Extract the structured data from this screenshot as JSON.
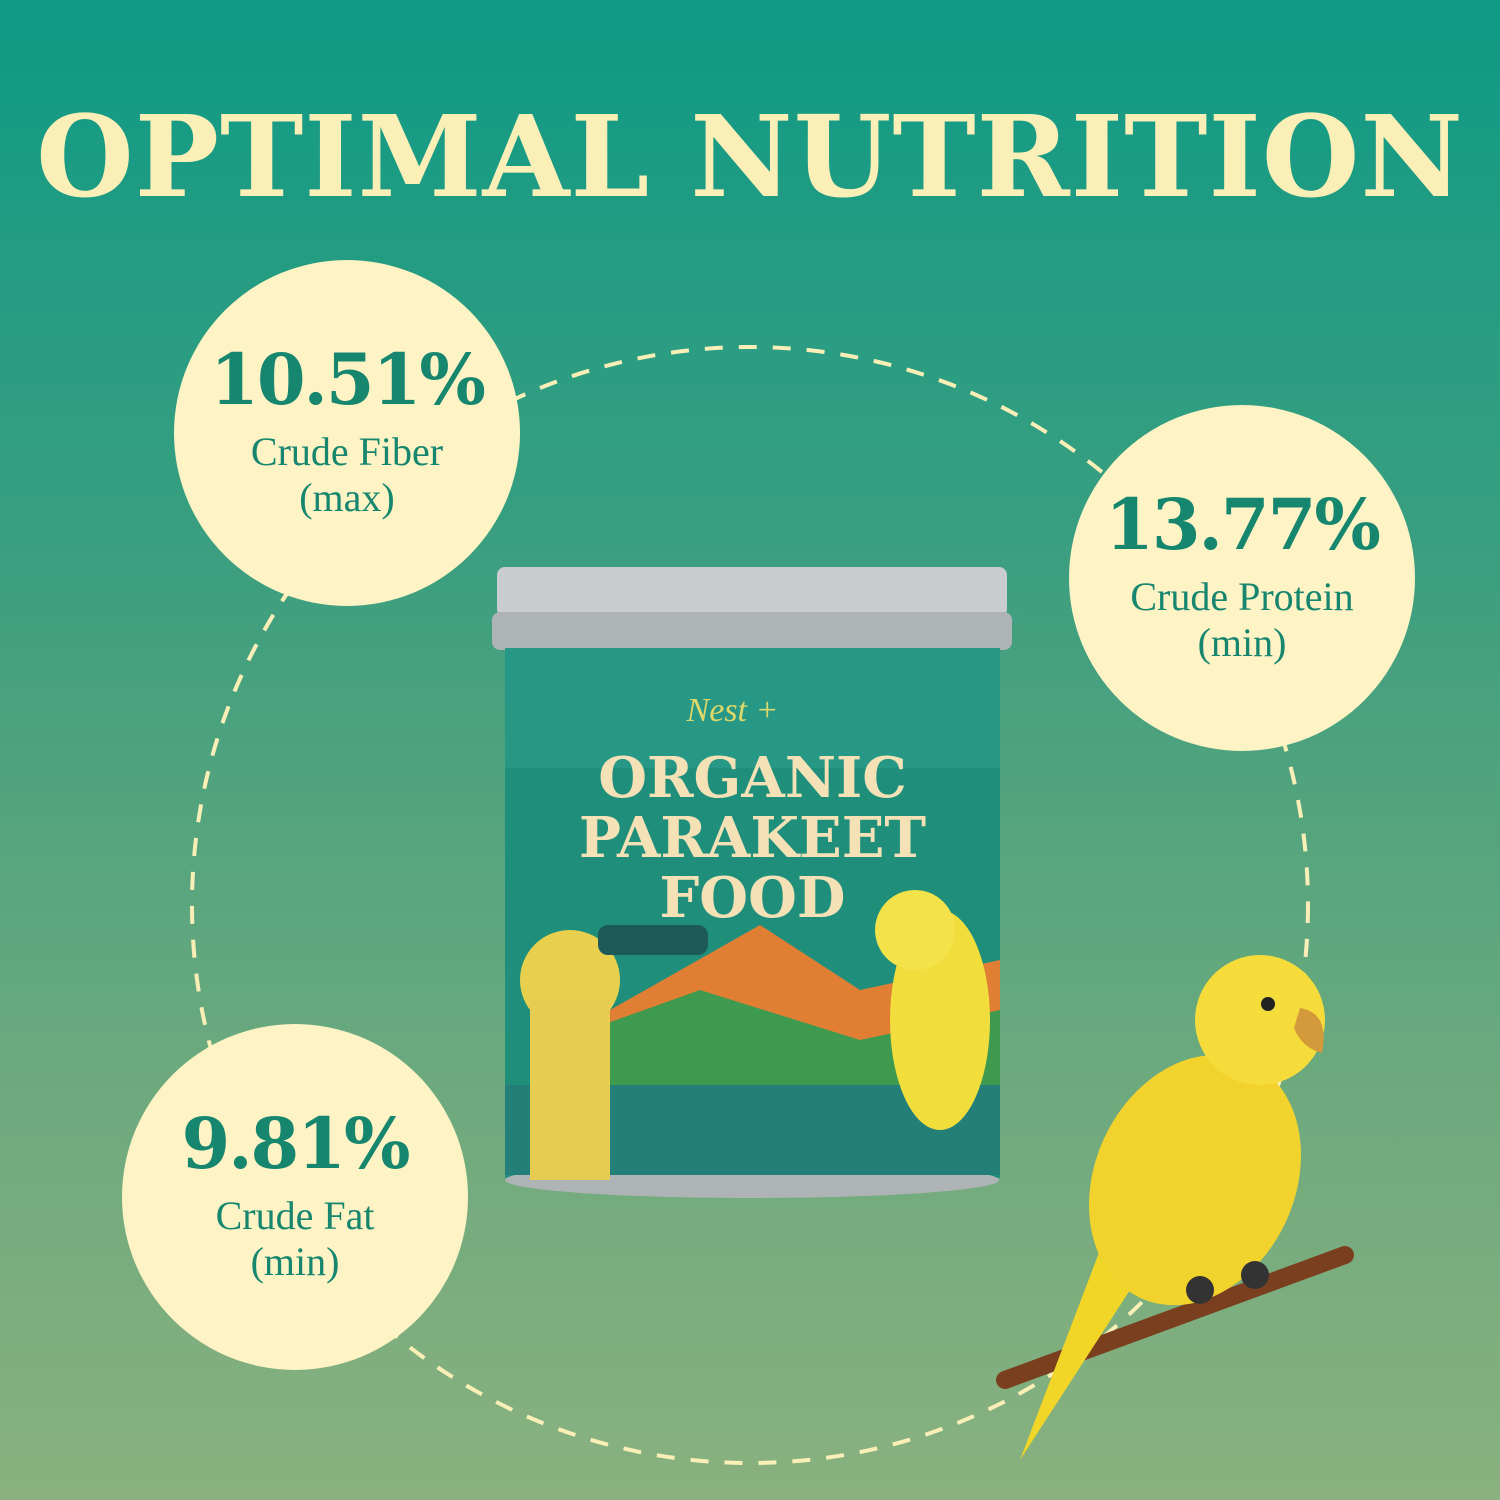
{
  "title": "OPTIMAL NUTRITION",
  "badges": [
    {
      "value": "10.51%",
      "label": "Crude Fiber",
      "qualifier": "(max)"
    },
    {
      "value": "13.77%",
      "label": "Crude Protein",
      "qualifier": "(min)"
    },
    {
      "value": "9.81%",
      "label": "Crude Fat",
      "qualifier": "(min)"
    }
  ],
  "product": {
    "brand": "Nest +",
    "line1": "ORGANIC",
    "line2": "PARAKEET",
    "line3": "FOOD"
  },
  "colors": {
    "background_top": "#0e9a85",
    "background_bottom": "#8ab17f",
    "badge_fill": "#fdf3c4",
    "badge_text": "#17866f",
    "title": "#fbefb8"
  }
}
